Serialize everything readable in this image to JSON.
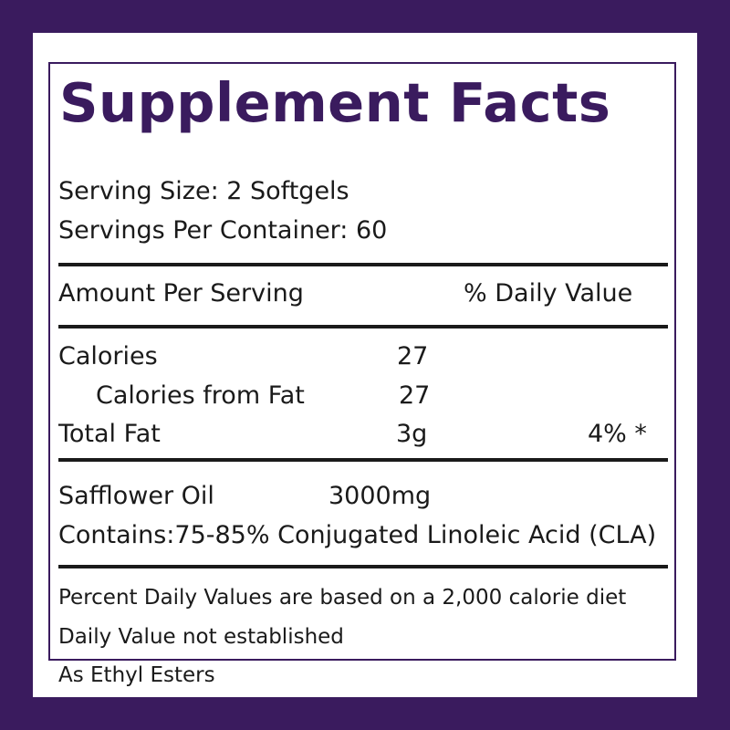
{
  "label": {
    "title": "Supplement Facts",
    "serving_size": "Serving Size: 2 Softgels",
    "servings_per_container": "Servings Per Container: 60",
    "header": {
      "amount_per_serving": "Amount Per Serving",
      "daily_value": "% Daily Value"
    },
    "nutrients": [
      {
        "name": "Calories",
        "amount": "27",
        "dv": ""
      },
      {
        "name": "Calories from Fat",
        "amount": "27",
        "dv": ""
      },
      {
        "name": "Total Fat",
        "amount": "3g",
        "dv": "4% *"
      }
    ],
    "ingredient": {
      "name": "Safflower Oil",
      "amount": "3000mg",
      "contains": "Contains:75-85% Conjugated Linoleic Acid (CLA)"
    },
    "footnotes": [
      "Percent Daily Values are based on a 2,000 calorie diet",
      "Daily Value not established",
      "As Ethyl Esters"
    ]
  }
}
